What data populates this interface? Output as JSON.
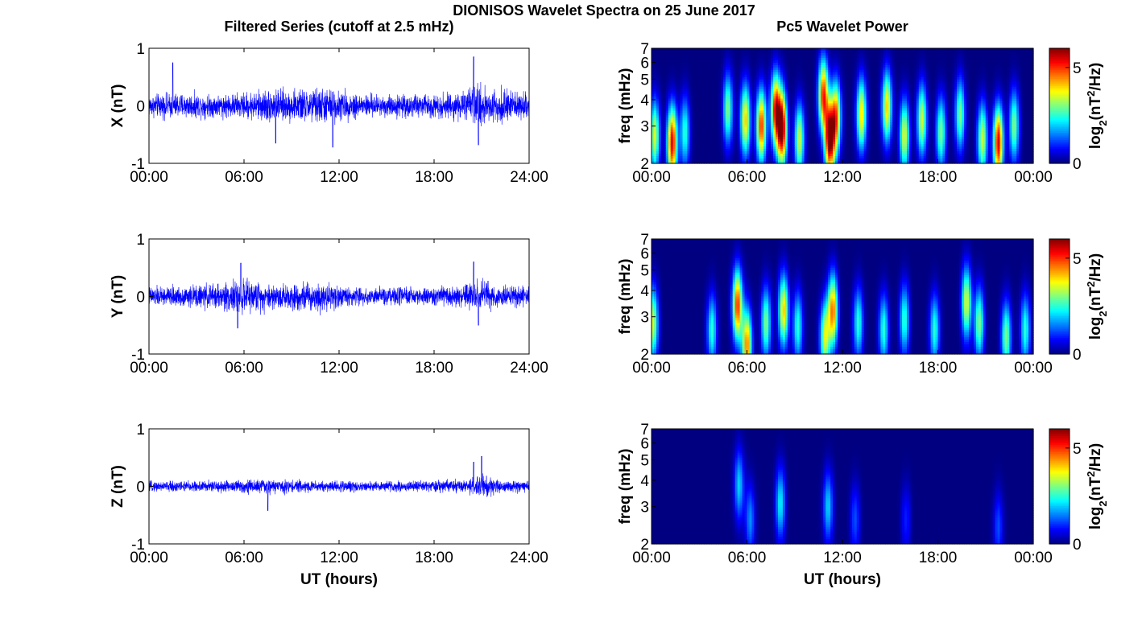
{
  "figure_title": "DIONISOS Wavelet Spectra on 25 June 2017",
  "left_column_title": "Filtered Series (cutoff at 2.5 mHz)",
  "right_column_title": "Pc5 Wavelet Power",
  "bottom_xlabel": "UT (hours)",
  "colorbar_label_base": "log",
  "colorbar_label_sub": "2",
  "colorbar_label_mid": "(nT",
  "colorbar_label_sup": "2",
  "colorbar_label_end": "/Hz)",
  "freq_label": "freq (mHz)",
  "colormap": "jet",
  "line_color": "#0000ff",
  "chart_data": [
    {
      "type": "line",
      "component": "X",
      "ylabel": "X (nT)",
      "xlabel": "",
      "x_ticks": [
        "00:00",
        "06:00",
        "12:00",
        "18:00",
        "24:00"
      ],
      "y_ticks": [
        "-1",
        "0",
        "1"
      ],
      "xlim_hours": [
        0,
        24
      ],
      "ylim": [
        -1,
        1
      ],
      "noise_envelope": [
        [
          0,
          0.16
        ],
        [
          2,
          0.18
        ],
        [
          4,
          0.16
        ],
        [
          6,
          0.18
        ],
        [
          7.5,
          0.24
        ],
        [
          9,
          0.22
        ],
        [
          11,
          0.26
        ],
        [
          12.5,
          0.2
        ],
        [
          14,
          0.16
        ],
        [
          16,
          0.16
        ],
        [
          18,
          0.17
        ],
        [
          20,
          0.2
        ],
        [
          20.8,
          0.3
        ],
        [
          22,
          0.24
        ],
        [
          24,
          0.17
        ]
      ],
      "extremes": [
        [
          1.5,
          0.75
        ],
        [
          8,
          -0.65
        ],
        [
          11.6,
          -0.72
        ],
        [
          20.5,
          0.85
        ],
        [
          20.8,
          -0.68
        ]
      ]
    },
    {
      "type": "line",
      "component": "Y",
      "ylabel": "Y (nT)",
      "xlabel": "",
      "x_ticks": [
        "00:00",
        "06:00",
        "12:00",
        "18:00",
        "24:00"
      ],
      "y_ticks": [
        "-1",
        "0",
        "1"
      ],
      "xlim_hours": [
        0,
        24
      ],
      "ylim": [
        -1,
        1
      ],
      "noise_envelope": [
        [
          0,
          0.14
        ],
        [
          2,
          0.14
        ],
        [
          4,
          0.18
        ],
        [
          6,
          0.24
        ],
        [
          7,
          0.2
        ],
        [
          9,
          0.18
        ],
        [
          11,
          0.22
        ],
        [
          12.5,
          0.14
        ],
        [
          14,
          0.12
        ],
        [
          16,
          0.13
        ],
        [
          18,
          0.13
        ],
        [
          20,
          0.17
        ],
        [
          21,
          0.24
        ],
        [
          22,
          0.16
        ],
        [
          24,
          0.14
        ]
      ],
      "extremes": [
        [
          5.8,
          0.58
        ],
        [
          5.6,
          -0.55
        ],
        [
          20.5,
          0.6
        ],
        [
          20.8,
          -0.5
        ]
      ]
    },
    {
      "type": "line",
      "component": "Z",
      "ylabel": "Z (nT)",
      "xlabel": "UT (hours)",
      "x_ticks": [
        "00:00",
        "06:00",
        "12:00",
        "18:00",
        "24:00"
      ],
      "y_ticks": [
        "-1",
        "0",
        "1"
      ],
      "xlim_hours": [
        0,
        24
      ],
      "ylim": [
        -1,
        1
      ],
      "noise_envelope": [
        [
          0,
          0.07
        ],
        [
          2,
          0.08
        ],
        [
          4,
          0.08
        ],
        [
          6,
          0.1
        ],
        [
          8,
          0.1
        ],
        [
          10,
          0.08
        ],
        [
          12,
          0.08
        ],
        [
          14,
          0.07
        ],
        [
          16,
          0.07
        ],
        [
          18,
          0.08
        ],
        [
          20,
          0.1
        ],
        [
          21,
          0.18
        ],
        [
          22,
          0.1
        ],
        [
          24,
          0.07
        ]
      ],
      "extremes": [
        [
          7.5,
          -0.42
        ],
        [
          21,
          0.52
        ],
        [
          20.5,
          0.42
        ]
      ]
    },
    {
      "type": "heatmap",
      "component": "X",
      "ylabel": "freq (mHz)",
      "xlabel": "",
      "x_ticks": [
        "00:00",
        "06:00",
        "12:00",
        "18:00",
        "00:00"
      ],
      "y_ticks": [
        "2",
        "3",
        "4",
        "5",
        "6",
        "7"
      ],
      "yscale": "log",
      "ylim_mHz": [
        2,
        7
      ],
      "xlim_hours": [
        0,
        24
      ],
      "colorbar_ticks": [
        "0",
        "5"
      ],
      "colorbar_range": [
        0,
        6
      ],
      "blobs": [
        {
          "t": 0.2,
          "f": 2.7,
          "amp": 3.5
        },
        {
          "t": 1.3,
          "f": 2.5,
          "amp": 5.5
        },
        {
          "t": 2.1,
          "f": 2.8,
          "amp": 2.5
        },
        {
          "t": 4.8,
          "f": 3.6,
          "amp": 3.0
        },
        {
          "t": 5.9,
          "f": 3.2,
          "amp": 4.0
        },
        {
          "t": 6.9,
          "f": 3.0,
          "amp": 5.0
        },
        {
          "t": 7.8,
          "f": 3.6,
          "amp": 5.0
        },
        {
          "t": 8.2,
          "f": 2.9,
          "amp": 6.0
        },
        {
          "t": 9.3,
          "f": 2.6,
          "amp": 3.5
        },
        {
          "t": 10.8,
          "f": 4.2,
          "amp": 5.0
        },
        {
          "t": 11.2,
          "f": 2.6,
          "amp": 6.0
        },
        {
          "t": 11.6,
          "f": 3.3,
          "amp": 4.5
        },
        {
          "t": 13.2,
          "f": 3.4,
          "amp": 4.0
        },
        {
          "t": 14.8,
          "f": 3.7,
          "amp": 4.0
        },
        {
          "t": 15.9,
          "f": 2.7,
          "amp": 3.5
        },
        {
          "t": 17.0,
          "f": 3.2,
          "amp": 3.5
        },
        {
          "t": 18.2,
          "f": 2.8,
          "amp": 3.0
        },
        {
          "t": 19.4,
          "f": 3.4,
          "amp": 3.0
        },
        {
          "t": 20.8,
          "f": 2.6,
          "amp": 3.5
        },
        {
          "t": 21.8,
          "f": 2.5,
          "amp": 5.5
        },
        {
          "t": 22.8,
          "f": 3.0,
          "amp": 3.0
        }
      ]
    },
    {
      "type": "heatmap",
      "component": "Y",
      "ylabel": "freq (mHz)",
      "xlabel": "",
      "x_ticks": [
        "00:00",
        "06:00",
        "12:00",
        "18:00",
        "00:00"
      ],
      "y_ticks": [
        "2",
        "3",
        "4",
        "5",
        "6",
        "7"
      ],
      "yscale": "log",
      "ylim_mHz": [
        2,
        7
      ],
      "xlim_hours": [
        0,
        24
      ],
      "colorbar_ticks": [
        "0",
        "5"
      ],
      "colorbar_range": [
        0,
        6
      ],
      "blobs": [
        {
          "t": 0.1,
          "f": 2.8,
          "amp": 3.5
        },
        {
          "t": 3.8,
          "f": 2.6,
          "amp": 2.5
        },
        {
          "t": 5.4,
          "f": 3.4,
          "amp": 5.0
        },
        {
          "t": 6.0,
          "f": 2.2,
          "amp": 4.5
        },
        {
          "t": 7.2,
          "f": 2.8,
          "amp": 3.0
        },
        {
          "t": 8.3,
          "f": 3.2,
          "amp": 4.0
        },
        {
          "t": 9.2,
          "f": 2.7,
          "amp": 2.5
        },
        {
          "t": 10.9,
          "f": 2.4,
          "amp": 3.5
        },
        {
          "t": 11.4,
          "f": 3.2,
          "amp": 4.5
        },
        {
          "t": 13.0,
          "f": 2.8,
          "amp": 2.5
        },
        {
          "t": 14.6,
          "f": 2.6,
          "amp": 2.5
        },
        {
          "t": 15.9,
          "f": 2.9,
          "amp": 2.5
        },
        {
          "t": 17.8,
          "f": 2.6,
          "amp": 2.5
        },
        {
          "t": 19.8,
          "f": 3.5,
          "amp": 3.5
        },
        {
          "t": 20.6,
          "f": 2.8,
          "amp": 3.0
        },
        {
          "t": 22.3,
          "f": 2.4,
          "amp": 3.0
        },
        {
          "t": 23.5,
          "f": 2.6,
          "amp": 2.5
        }
      ]
    },
    {
      "type": "heatmap",
      "component": "Z",
      "ylabel": "freq (mHz)",
      "xlabel": "UT (hours)",
      "x_ticks": [
        "00:00",
        "06:00",
        "12:00",
        "18:00",
        "00:00"
      ],
      "y_ticks": [
        "2",
        "3",
        "4",
        "5",
        "6",
        "7"
      ],
      "yscale": "log",
      "ylim_mHz": [
        2,
        7
      ],
      "xlim_hours": [
        0,
        24
      ],
      "colorbar_ticks": [
        "0",
        "5"
      ],
      "colorbar_range": [
        0,
        6
      ],
      "blobs": [
        {
          "t": 5.5,
          "f": 3.8,
          "amp": 2.0
        },
        {
          "t": 6.2,
          "f": 2.6,
          "amp": 1.6
        },
        {
          "t": 8.1,
          "f": 3.1,
          "amp": 2.2
        },
        {
          "t": 11.1,
          "f": 3.0,
          "amp": 2.0
        },
        {
          "t": 12.8,
          "f": 2.6,
          "amp": 1.2
        },
        {
          "t": 16.0,
          "f": 2.6,
          "amp": 0.9
        },
        {
          "t": 21.8,
          "f": 2.4,
          "amp": 1.2
        }
      ]
    }
  ]
}
